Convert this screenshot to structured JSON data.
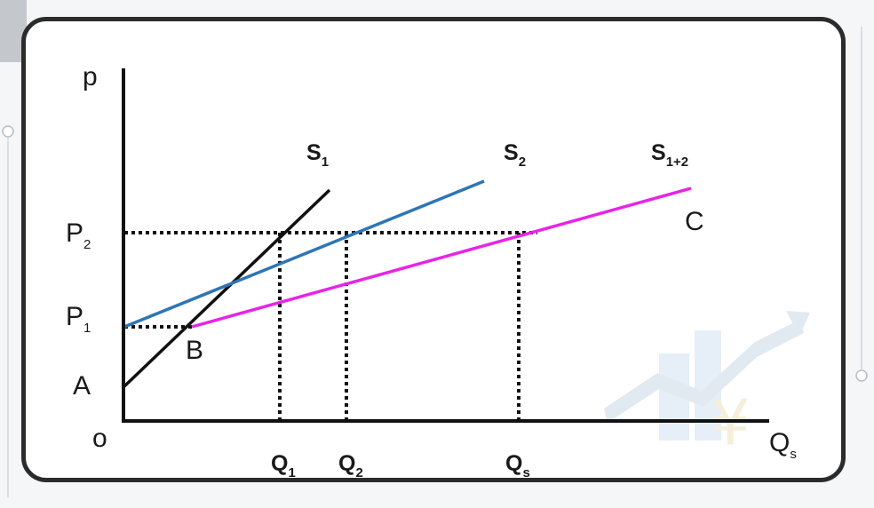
{
  "colors": {
    "s1": "#111111",
    "s2": "#2e75b6",
    "s12": "#e824e8",
    "axis": "#111111",
    "dotted": "#111111",
    "frame": "#2b2b2b"
  },
  "labels": {
    "y_axis": "p",
    "origin": "o",
    "x_axis": {
      "main": "Q",
      "sub": "s"
    },
    "p1": {
      "main": "P",
      "sub": "1"
    },
    "p2": {
      "main": "P",
      "sub": "2"
    },
    "q1": {
      "main": "Q",
      "sub": "1"
    },
    "q2": {
      "main": "Q",
      "sub": "2"
    },
    "qs": {
      "main": "Q",
      "sub": "s"
    },
    "s1": {
      "main": "S",
      "sub": "1"
    },
    "s2": {
      "main": "S",
      "sub": "2"
    },
    "s12": {
      "main": "S",
      "sub": "1+2"
    },
    "point_a": "A",
    "point_b": "B",
    "point_c": "C"
  }
}
